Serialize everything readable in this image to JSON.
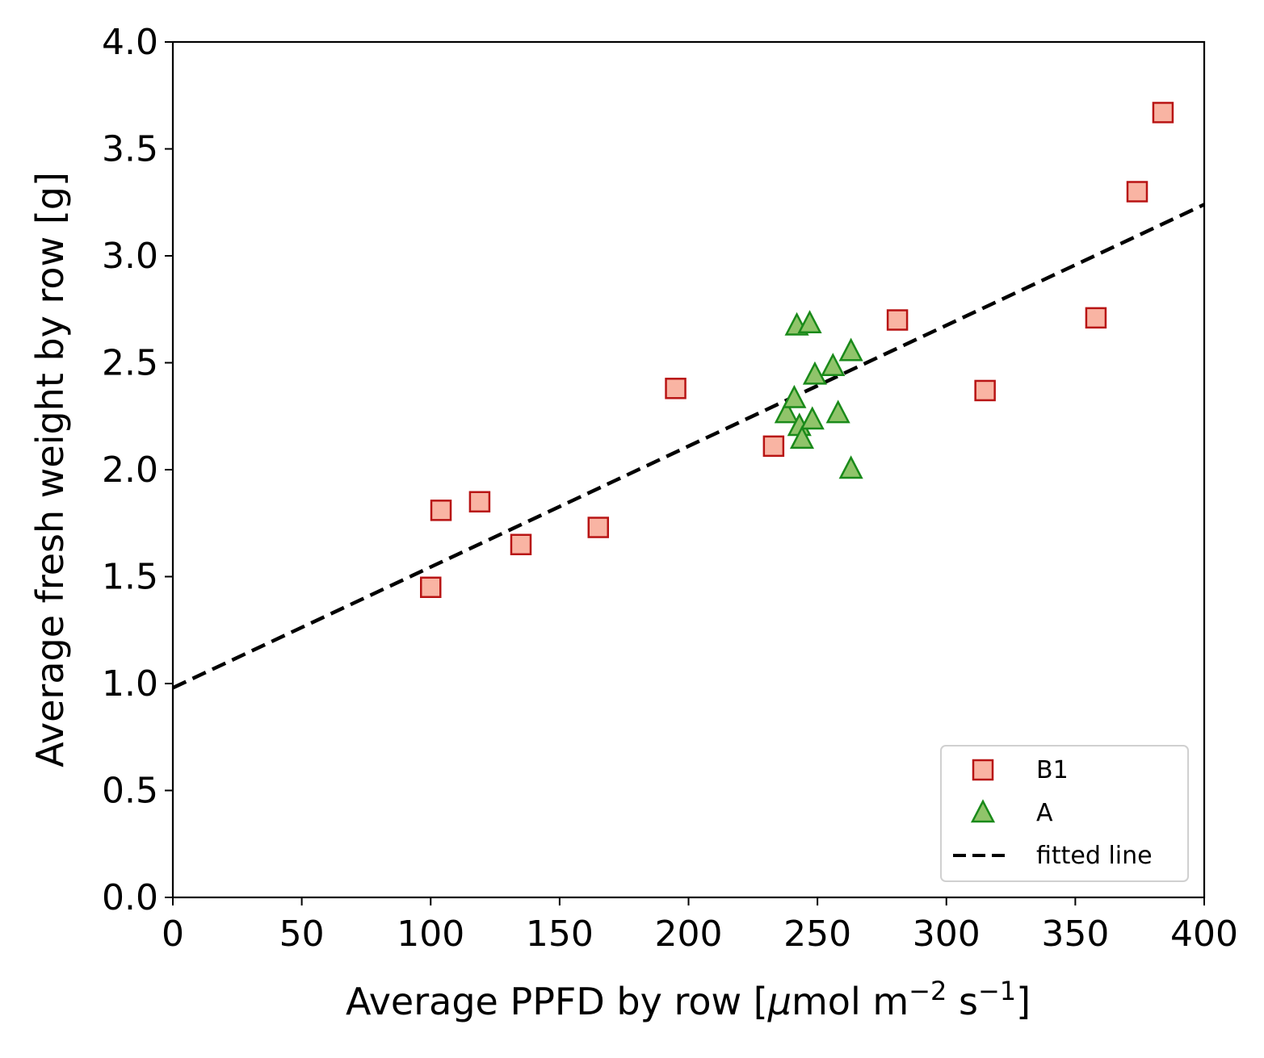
{
  "chart_data": {
    "type": "scatter",
    "xlabel_main": "Average PPFD by row [",
    "xlabel_mu": "μ",
    "xlabel_mol": "mol m",
    "xlabel_exp1": "−2",
    "xlabel_s": " s",
    "xlabel_exp2": "−1",
    "xlabel_end": "]",
    "ylabel": "Average fresh weight by row [g]",
    "xlim": [
      0,
      400
    ],
    "ylim": [
      0,
      4.0
    ],
    "xticks": [
      "0",
      "50",
      "100",
      "150",
      "200",
      "250",
      "300",
      "350",
      "400"
    ],
    "yticks": [
      "0.0",
      "0.5",
      "1.0",
      "1.5",
      "2.0",
      "2.5",
      "3.0",
      "3.5",
      "4.0"
    ],
    "grid": false,
    "legend_position": "bottom-right",
    "series": [
      {
        "name": "B1",
        "marker": "square",
        "fill": "#f9b4a3",
        "edge": "#b81414",
        "points": [
          [
            100,
            1.45
          ],
          [
            104,
            1.81
          ],
          [
            119,
            1.85
          ],
          [
            135,
            1.65
          ],
          [
            165,
            1.73
          ],
          [
            195,
            2.38
          ],
          [
            233,
            2.11
          ],
          [
            281,
            2.7
          ],
          [
            315,
            2.37
          ],
          [
            358,
            2.71
          ],
          [
            374,
            3.3
          ],
          [
            384,
            3.67
          ]
        ]
      },
      {
        "name": "A",
        "marker": "triangle",
        "fill": "#90c46a",
        "edge": "#1a8a1a",
        "points": [
          [
            238,
            2.26
          ],
          [
            241,
            2.33
          ],
          [
            242,
            2.67
          ],
          [
            243,
            2.2
          ],
          [
            244,
            2.14
          ],
          [
            247,
            2.68
          ],
          [
            248,
            2.23
          ],
          [
            249,
            2.44
          ],
          [
            256,
            2.48
          ],
          [
            258,
            2.26
          ],
          [
            263,
            2.55
          ],
          [
            263,
            2.0
          ]
        ]
      },
      {
        "name": "fitted line",
        "type": "line",
        "style": "dashed",
        "color": "#000000",
        "points": [
          [
            0,
            0.98
          ],
          [
            400,
            3.24
          ]
        ]
      }
    ]
  }
}
